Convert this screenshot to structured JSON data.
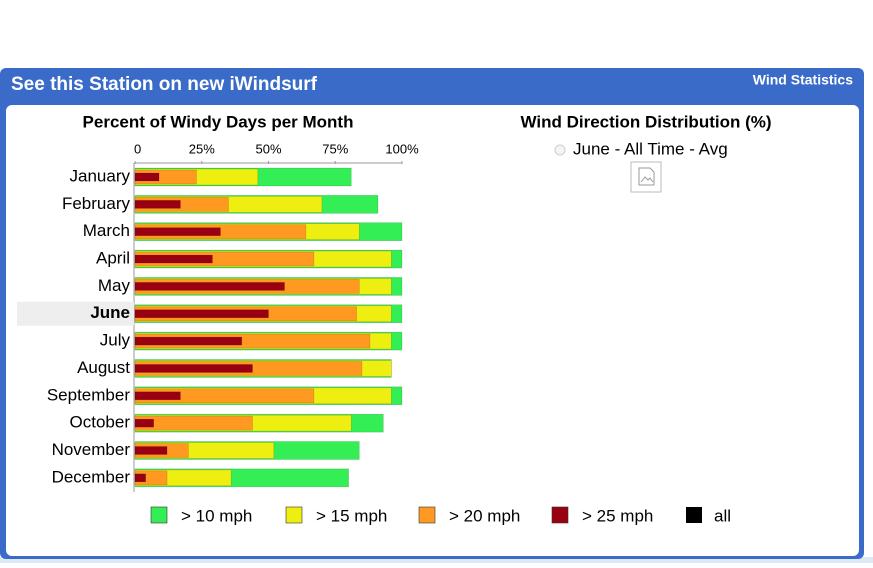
{
  "header": {
    "title": "See this Station on new iWindsurf",
    "section": "Wind Statistics"
  },
  "direction": {
    "title": "Wind Direction Distribution (%)",
    "option": "June - All Time - Avg"
  },
  "chart_data": {
    "type": "bar",
    "orientation": "horizontal",
    "overlap": true,
    "title": "Percent of Windy Days per Month",
    "categories": [
      "January",
      "February",
      "March",
      "April",
      "May",
      "June",
      "July",
      "August",
      "September",
      "October",
      "November",
      "December"
    ],
    "highlight_index": 5,
    "xlim": [
      0,
      100
    ],
    "xticks": [
      0,
      {
        "value": 25,
        "label": "25%"
      },
      {
        "value": 50,
        "label": "50%"
      },
      {
        "value": 75,
        "label": "75%"
      },
      {
        "value": 100,
        "label": "100%"
      }
    ],
    "series": [
      {
        "name": "> 10 mph",
        "color": "#33ee55",
        "values": [
          81,
          91,
          100,
          100,
          100,
          100,
          100,
          96,
          100,
          93,
          84,
          80
        ]
      },
      {
        "name": "> 15 mph",
        "color": "#eeee11",
        "values": [
          46,
          70,
          84,
          96,
          96,
          96,
          96,
          96,
          96,
          81,
          52,
          36
        ]
      },
      {
        "name": "> 20 mph",
        "color": "#ff9922",
        "values": [
          23,
          35,
          64,
          67,
          84,
          83,
          88,
          85,
          67,
          44,
          20,
          12
        ]
      },
      {
        "name": "> 25 mph",
        "color": "#990011",
        "values": [
          9,
          17,
          32,
          29,
          56,
          50,
          40,
          44,
          17,
          7,
          12,
          4
        ]
      }
    ],
    "legend_extra": {
      "name": "all",
      "color": "#000000"
    }
  }
}
